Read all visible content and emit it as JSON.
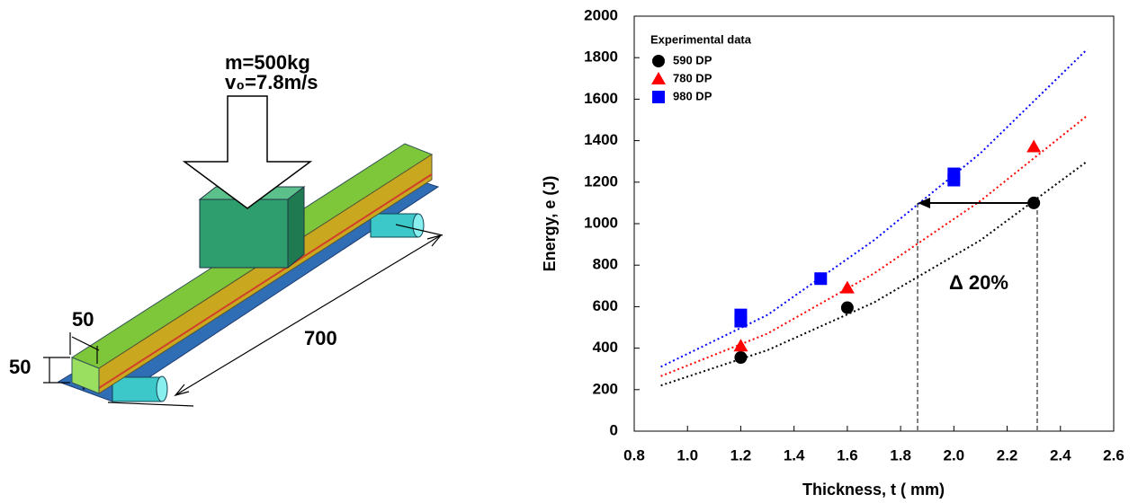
{
  "diagram": {
    "mass": "m=500kg",
    "velocity": "v₀=7.8m/s",
    "width": "50",
    "height": "50",
    "length": "700"
  },
  "chart_data": {
    "type": "scatter",
    "xlabel": "Thickness, t ( mm)",
    "ylabel": "Energy, e (J)",
    "xlim": [
      0.8,
      2.6
    ],
    "xticks": [
      0.8,
      {
        "value": 1,
        "label": "1.0"
      },
      1.2,
      1.4,
      1.6,
      1.8,
      {
        "value": 2,
        "label": "2.0"
      },
      2.2,
      2.4,
      2.6
    ],
    "ylim": [
      0,
      2000
    ],
    "yticks": [
      0,
      200,
      400,
      600,
      800,
      1000,
      1200,
      1400,
      1600,
      1800,
      2000
    ],
    "legend_title": "Experimental data",
    "legend": "upper left",
    "series": [
      {
        "name": "590 DP",
        "color": "#000000",
        "marker": "circle",
        "x": [
          1.2,
          1.6,
          2.3
        ],
        "values": [
          355,
          595,
          1100
        ]
      },
      {
        "name": "780 DP",
        "color": "#ff0000",
        "marker": "triangle",
        "x": [
          1.2,
          1.6,
          2.3
        ],
        "values": [
          410,
          690,
          1370
        ]
      },
      {
        "name": "980 DP",
        "color": "#0000ff",
        "marker": "square",
        "x": [
          1.2,
          1.2,
          1.5,
          2.0,
          2.0
        ],
        "values": [
          530,
          560,
          735,
          1210,
          1240
        ]
      }
    ],
    "trendlines": [
      {
        "color": "#000000",
        "x": [
          0.9,
          1.3,
          1.7,
          2.1,
          2.5
        ],
        "values": [
          220,
          390,
          620,
          920,
          1300
        ]
      },
      {
        "color": "#ff0000",
        "x": [
          0.9,
          1.3,
          1.7,
          2.1,
          2.5
        ],
        "values": [
          265,
          470,
          760,
          1110,
          1520
        ]
      },
      {
        "color": "#0000ff",
        "x": [
          0.9,
          1.3,
          1.7,
          2.1,
          2.5
        ],
        "values": [
          310,
          560,
          920,
          1340,
          1840
        ]
      }
    ],
    "annotation": "Δ 20%"
  }
}
